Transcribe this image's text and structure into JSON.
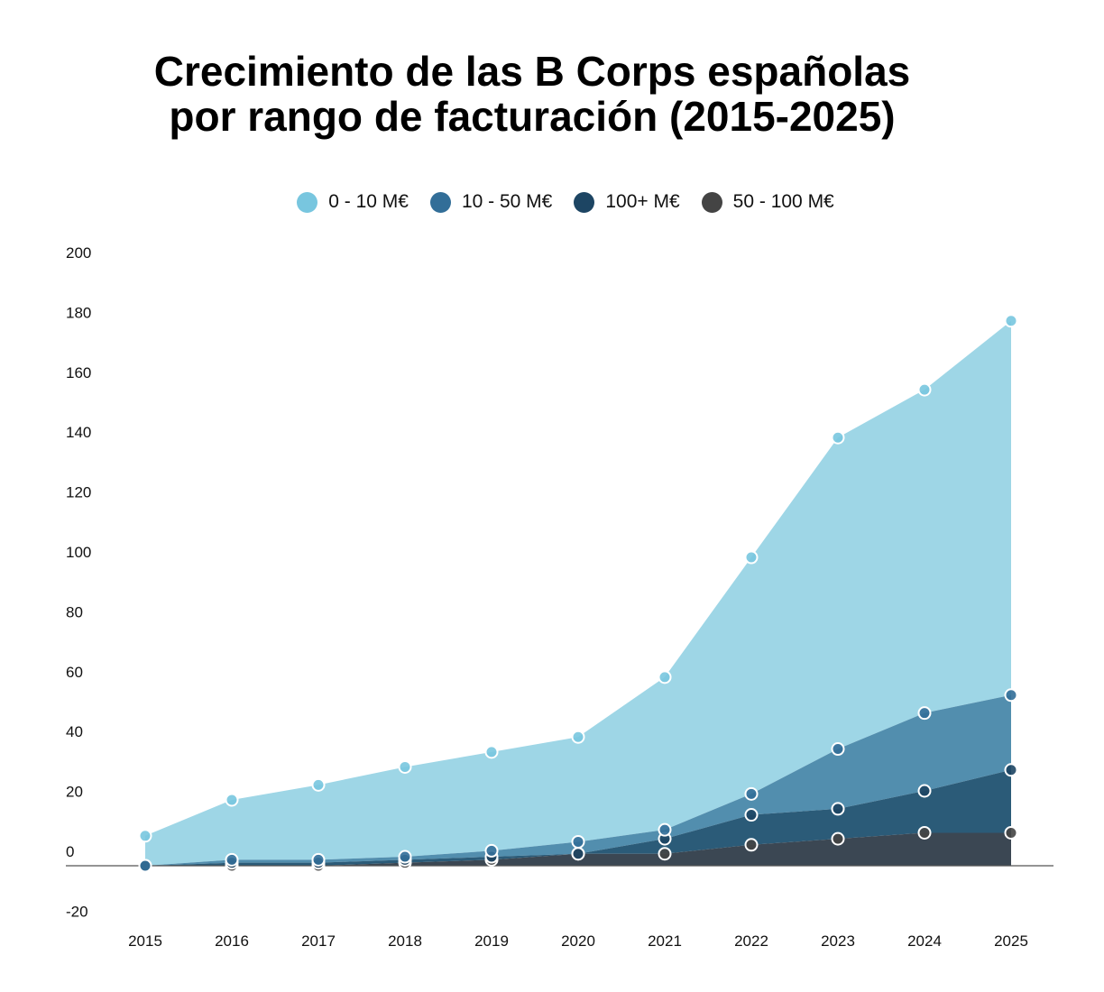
{
  "chart_data": {
    "type": "area",
    "stacked": true,
    "title_line1": "Crecimiento de las B Corps españolas",
    "title_line2": "por rango de facturación (2015-2025)",
    "xlabel": "",
    "ylabel": "",
    "categories": [
      "2015",
      "2016",
      "2017",
      "2018",
      "2019",
      "2020",
      "2021",
      "2022",
      "2023",
      "2024",
      "2025"
    ],
    "ylim": [
      -20,
      200
    ],
    "yticks": [
      -20,
      0,
      20,
      40,
      60,
      80,
      100,
      120,
      140,
      160,
      180,
      200
    ],
    "legend_position": "top-center",
    "series": [
      {
        "name": "50 - 100 M€",
        "color": "#444444",
        "fill": "#3b4753",
        "values": [
          0,
          0,
          0,
          1,
          2,
          4,
          4,
          7,
          9,
          11,
          11
        ]
      },
      {
        "name": "100+ M€",
        "color": "#1d4563",
        "fill": "#2b5b78",
        "values": [
          0,
          1,
          1,
          1,
          1,
          0,
          5,
          10,
          10,
          14,
          21
        ]
      },
      {
        "name": "10 - 50 M€",
        "color": "#326e98",
        "fill": "#528eae",
        "values": [
          0,
          1,
          1,
          1,
          2,
          4,
          3,
          7,
          20,
          26,
          25
        ]
      },
      {
        "name": "0 - 10 M€",
        "color": "#78c6df",
        "fill": "#9ed6e6",
        "values": [
          10,
          20,
          25,
          30,
          33,
          35,
          51,
          79,
          104,
          108,
          125
        ]
      }
    ],
    "legend_order": [
      "0 - 10 M€",
      "10 - 50 M€",
      "100+ M€",
      "50 - 100 M€"
    ]
  }
}
